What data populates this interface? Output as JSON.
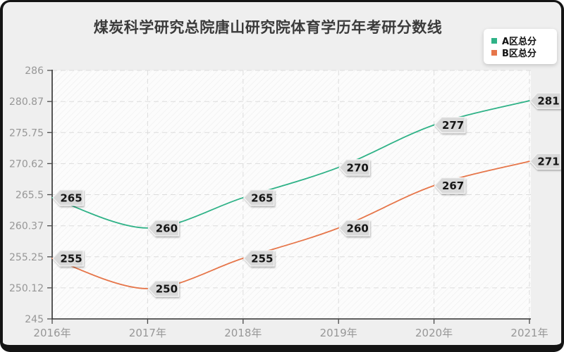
{
  "title": "煤炭科学研究总院唐山研究院体育学历年考研分数线",
  "legend": {
    "items": [
      {
        "label": "A区总分",
        "color": "#2fb287"
      },
      {
        "label": "B区总分",
        "color": "#e6764a"
      }
    ]
  },
  "chart_data": {
    "type": "line",
    "title": "煤炭科学研究总院唐山研究院体育学历年考研分数线",
    "x": [
      "2016年",
      "2017年",
      "2018年",
      "2019年",
      "2020年",
      "2021年"
    ],
    "series": [
      {
        "name": "A区总分",
        "color": "#2fb287",
        "values": [
          265,
          260,
          265,
          270,
          277,
          281
        ]
      },
      {
        "name": "B区总分",
        "color": "#e6764a",
        "values": [
          255,
          250,
          255,
          260,
          267,
          271
        ]
      }
    ],
    "ylim": [
      245,
      286
    ],
    "yticks": [
      245,
      250.12,
      255.25,
      260.37,
      265.5,
      270.62,
      275.75,
      280.87,
      286
    ],
    "grid": true,
    "grid_style": "dashed",
    "smooth": true,
    "data_labels": true,
    "legend_position": "top-right",
    "colors": {
      "plot_background": "#fcfcfc",
      "outer_background": "#efefef",
      "gridline": "#dcdcdc",
      "spine": "#2f2f2f",
      "tick_label": "#979797",
      "tag_fill": "#d9d9d9",
      "tag_border": "#f5f5f5",
      "tag_text": "#141414"
    }
  }
}
